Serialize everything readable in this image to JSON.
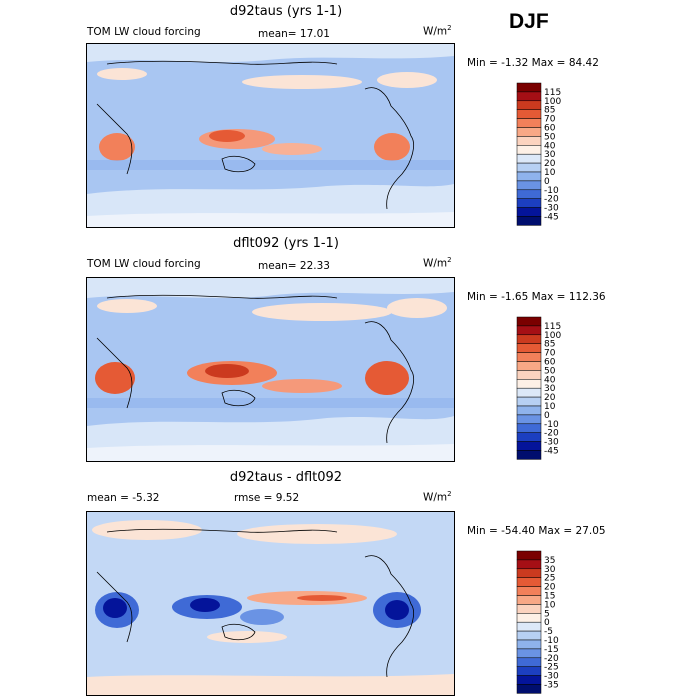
{
  "season": "DJF",
  "panels": [
    {
      "title": "d92taus (yrs 1-1)",
      "left_label": "TOM LW cloud forcing",
      "mean_label": "mean=",
      "mean_value": "17.01",
      "rmse_label": "",
      "rmse_value": "",
      "units": "W/m",
      "units_sup": "2",
      "min_label": "Min =",
      "min_value": "-1.32",
      "max_label": "Max =",
      "max_value": "84.42"
    },
    {
      "title": "dflt092 (yrs 1-1)",
      "left_label": "TOM LW cloud forcing",
      "mean_label": "mean=",
      "mean_value": "22.33",
      "rmse_label": "",
      "rmse_value": "",
      "units": "W/m",
      "units_sup": "2",
      "min_label": "Min =",
      "min_value": "-1.65",
      "max_label": "Max =",
      "max_value": "112.36"
    },
    {
      "title": "d92taus - dflt092",
      "left_label": "",
      "mean_label": "mean =",
      "mean_value": "-5.32",
      "rmse_label": "rmse =",
      "rmse_value": "9.52",
      "units": "W/m",
      "units_sup": "2",
      "min_label": "Min =",
      "min_value": "-54.40",
      "max_label": "Max =",
      "max_value": "27.05"
    }
  ],
  "chart_data": [
    {
      "type": "heatmap",
      "title": "d92taus (yrs 1-1)",
      "field": "TOM LW cloud forcing",
      "units": "W/m2",
      "mean": 17.01,
      "min": -1.32,
      "max": 84.42,
      "colorbar_levels": [
        "115",
        "100",
        "85",
        "70",
        "60",
        "50",
        "40",
        "30",
        "20",
        "10",
        "0",
        "-10",
        "-20",
        "-30",
        "-45"
      ],
      "colorbar_colors": [
        "#7a0000",
        "#a50f15",
        "#cb3a1f",
        "#e55a35",
        "#f2805a",
        "#f8a886",
        "#fbd3bf",
        "#fdf0e6",
        "#dce8f8",
        "#b7d0f3",
        "#8fb3ec",
        "#6a93e4",
        "#3f6ad6",
        "#1c3fc0",
        "#04149a",
        "#000e6e"
      ]
    },
    {
      "type": "heatmap",
      "title": "dflt092 (yrs 1-1)",
      "field": "TOM LW cloud forcing",
      "units": "W/m2",
      "mean": 22.33,
      "min": -1.65,
      "max": 112.36,
      "colorbar_levels": [
        "115",
        "100",
        "85",
        "70",
        "60",
        "50",
        "40",
        "30",
        "20",
        "10",
        "0",
        "-10",
        "-20",
        "-30",
        "-45"
      ],
      "colorbar_colors": [
        "#7a0000",
        "#a50f15",
        "#cb3a1f",
        "#e55a35",
        "#f2805a",
        "#f8a886",
        "#fbd3bf",
        "#fdf0e6",
        "#dce8f8",
        "#b7d0f3",
        "#8fb3ec",
        "#6a93e4",
        "#3f6ad6",
        "#1c3fc0",
        "#04149a",
        "#000e6e"
      ]
    },
    {
      "type": "heatmap",
      "title": "d92taus - dflt092",
      "units": "W/m2",
      "mean": -5.32,
      "rmse": 9.52,
      "min": -54.4,
      "max": 27.05,
      "colorbar_levels": [
        "35",
        "30",
        "25",
        "20",
        "15",
        "10",
        "5",
        "0",
        "-5",
        "-10",
        "-15",
        "-20",
        "-25",
        "-30",
        "-35"
      ],
      "colorbar_colors": [
        "#7a0000",
        "#a50f15",
        "#cb3a1f",
        "#e55a35",
        "#f2805a",
        "#f8a886",
        "#fbd3bf",
        "#fdf0e6",
        "#dce8f8",
        "#b7d0f3",
        "#8fb3ec",
        "#6a93e4",
        "#3f6ad6",
        "#1c3fc0",
        "#04149a",
        "#000e6e"
      ]
    }
  ]
}
